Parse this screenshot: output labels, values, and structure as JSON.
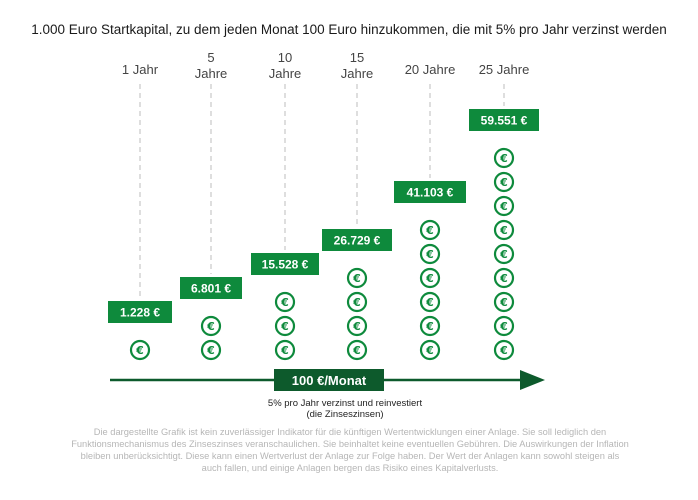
{
  "title": "1.000 Euro Startkapital, zu dem jeden Monat 100 Euro hinzukommen, die mit 5% pro Jahr verzinst werden",
  "arrow_label": "100 €/Monat",
  "subtitle_line1": "5% pro Jahr verzinst und reinvestiert",
  "subtitle_line2": "(die Zinseszinsen)",
  "disclaimer": "Die dargestellte Grafik ist kein zuverlässiger Indikator für die künftigen Wertentwicklungen einer Anlage. Sie soll lediglich den Funktionsmechanismus des Zinseszinses veranschaulichen. Sie beinhaltet keine eventuellen Gebühren. Die Auswirkungen der Inflation bleiben unberücksichtigt. Diese kann einen Wertverlust der Anlage zur Folge haben. Der Wert der Anlagen kann sowohl steigen als auch fallen, und einige Anlagen bergen das Risiko eines Kapitalverlusts.",
  "colors": {
    "green": "#0e8a3c",
    "dark_green": "#0d5a2c",
    "dashed": "#c8c8c8"
  },
  "icon": "euro-coin-icon",
  "chart_data": {
    "type": "bar",
    "categories": [
      "1 Jahr",
      "5 Jahre",
      "10 Jahre",
      "15 Jahre",
      "20 Jahre",
      "25 Jahre"
    ],
    "values": [
      1228,
      6801,
      15528,
      26729,
      41103,
      59551
    ],
    "value_labels": [
      "1.228 €",
      "6.801 €",
      "15.528 €",
      "26.729 €",
      "41.103 €",
      "59.551 €"
    ],
    "coin_counts": [
      1,
      2,
      3,
      4,
      6,
      9
    ]
  }
}
